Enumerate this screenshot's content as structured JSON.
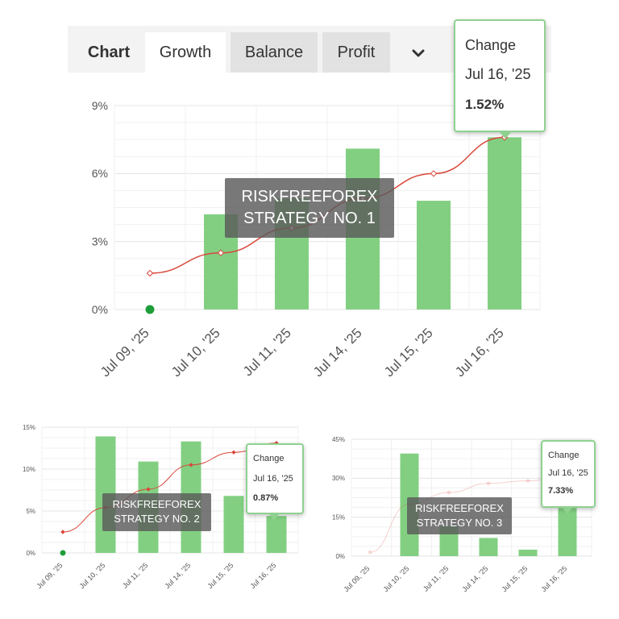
{
  "tabs": {
    "chart": "Chart",
    "growth": "Growth",
    "balance": "Balance",
    "profit": "Profit",
    "more_icon": "chevron-down-icon"
  },
  "colors": {
    "bar": "#82cf82",
    "line": "#d9473a",
    "grid": "#e6e6e6",
    "start_dot": "#1e9e3a",
    "tooltip_border": "#8fd18f"
  },
  "chart_data": [
    {
      "type": "bar+line",
      "title": "",
      "watermark": [
        "RISKFREEFOREX",
        "STRATEGY NO. 1"
      ],
      "categories": [
        "Jul 09, '25",
        "Jul 10, '25",
        "Jul 11, '25",
        "Jul 14, '25",
        "Jul 15, '25",
        "Jul 16, '25"
      ],
      "series": [
        {
          "name": "Daily Change",
          "type": "bar",
          "values": [
            null,
            4.2,
            4.9,
            7.1,
            4.8,
            7.6
          ]
        },
        {
          "name": "Growth",
          "type": "line",
          "values": [
            1.6,
            2.5,
            3.6,
            4.9,
            6.0,
            7.6
          ]
        }
      ],
      "yticks": [
        "0%",
        "3%",
        "6%",
        "9%"
      ],
      "ylim": [
        0,
        9
      ],
      "tooltip": {
        "label": "Change",
        "date": "Jul 16, '25",
        "value": "1.52%"
      }
    },
    {
      "type": "bar+line",
      "watermark": [
        "RISKFREEFOREX",
        "STRATEGY NO. 2"
      ],
      "categories": [
        "Jul 09, '25",
        "Jul 10, '25",
        "Jul 11, '25",
        "Jul 14, '25",
        "Jul 15, '25",
        "Jul 16, '25"
      ],
      "series": [
        {
          "name": "Daily Change",
          "type": "bar",
          "values": [
            null,
            13.9,
            10.9,
            13.3,
            6.8,
            4.4
          ]
        },
        {
          "name": "Growth",
          "type": "line",
          "values": [
            2.5,
            5.4,
            7.6,
            10.5,
            12.0,
            13.1
          ]
        }
      ],
      "yticks": [
        "0%",
        "5%",
        "10%",
        "15%"
      ],
      "ylim": [
        0,
        15
      ],
      "tooltip": {
        "label": "Change",
        "date": "Jul 16, '25",
        "value": "0.87%"
      }
    },
    {
      "type": "bar+line",
      "watermark": [
        "RISKFREEFOREX",
        "STRATEGY NO. 3"
      ],
      "categories": [
        "Jul 09, '25",
        "Jul 10, '25",
        "Jul 11, '25",
        "Jul 14, '25",
        "Jul 15, '25",
        "Jul 16, '25"
      ],
      "series": [
        {
          "name": "Daily Change",
          "type": "bar",
          "values": [
            null,
            39.5,
            11.5,
            7.0,
            2.5,
            18.5
          ]
        },
        {
          "name": "Growth",
          "type": "line",
          "values": [
            1.5,
            20.0,
            24.5,
            28.0,
            29.0,
            31.0
          ]
        }
      ],
      "yticks": [
        "0%",
        "15%",
        "30%",
        "45%"
      ],
      "ylim": [
        0,
        45
      ],
      "tooltip": {
        "label": "Change",
        "date": "Jul 16, '25",
        "value": "7.33%"
      }
    }
  ]
}
